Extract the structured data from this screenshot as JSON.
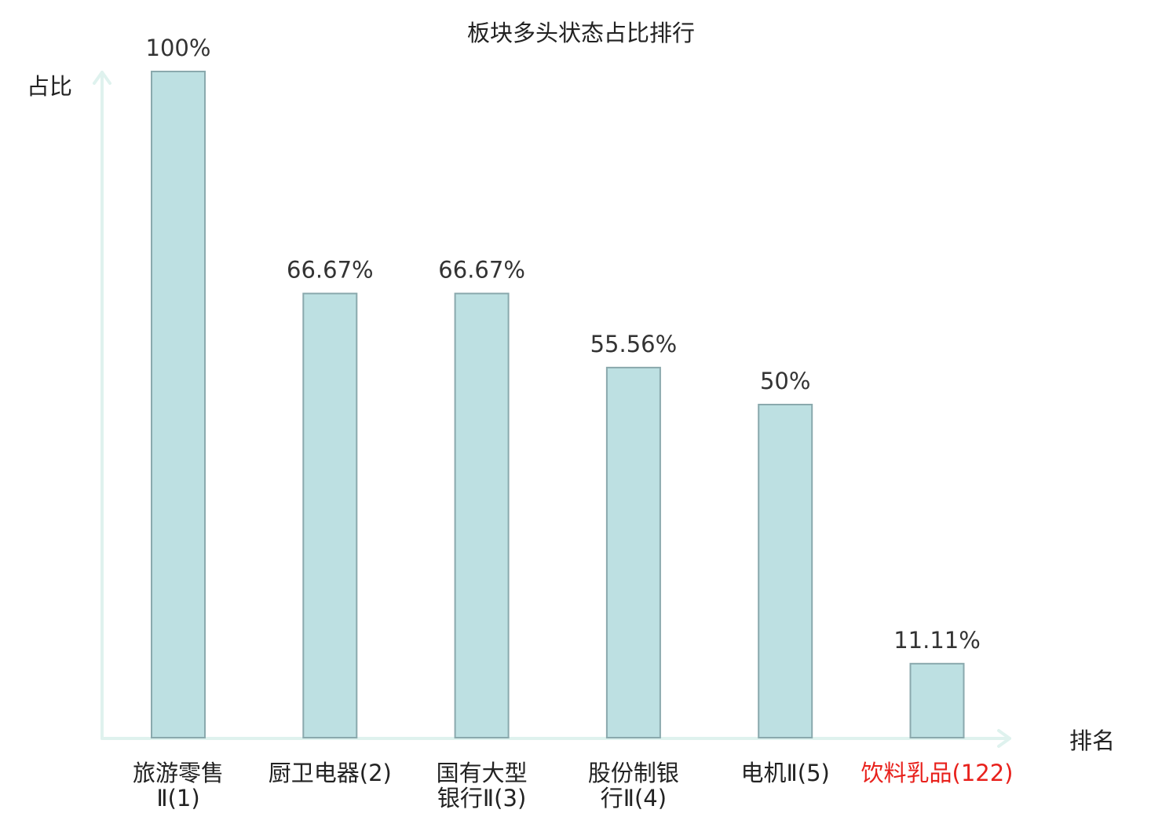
{
  "chart_data": {
    "type": "bar",
    "title": "板块多头状态占比排行",
    "ylabel": "占比",
    "xlabel": "排名",
    "categories": [
      {
        "name": "旅游零售Ⅱ",
        "rank": "(1)",
        "lines": [
          "旅游零售",
          "Ⅱ(1)"
        ],
        "highlight": false
      },
      {
        "name": "厨卫电器",
        "rank": "(2)",
        "lines": [
          "厨卫电器(2)"
        ],
        "highlight": false
      },
      {
        "name": "国有大型银行Ⅱ",
        "rank": "(3)",
        "lines": [
          "国有大型",
          "银行Ⅱ(3)"
        ],
        "highlight": false
      },
      {
        "name": "股份制银行Ⅱ",
        "rank": "(4)",
        "lines": [
          "股份制银",
          "行Ⅱ(4)"
        ],
        "highlight": false
      },
      {
        "name": "电机Ⅱ",
        "rank": "(5)",
        "lines": [
          "电机Ⅱ(5)"
        ],
        "highlight": false
      },
      {
        "name": "饮料乳品",
        "rank": "(122)",
        "lines": [
          "饮料乳品(122)"
        ],
        "highlight": true
      }
    ],
    "values": [
      100,
      66.67,
      66.67,
      55.56,
      50,
      11.11
    ],
    "value_labels": [
      "100%",
      "66.67%",
      "66.67%",
      "55.56%",
      "50%",
      "11.11%"
    ],
    "ylim": [
      0,
      100
    ],
    "grid": false,
    "legend": "none",
    "colors": {
      "bar_fill": "#bde0e2",
      "bar_stroke": "#8aa9ad",
      "axis": "#dff2ee",
      "text": "#222222",
      "highlight_text": "#e8211c"
    }
  }
}
